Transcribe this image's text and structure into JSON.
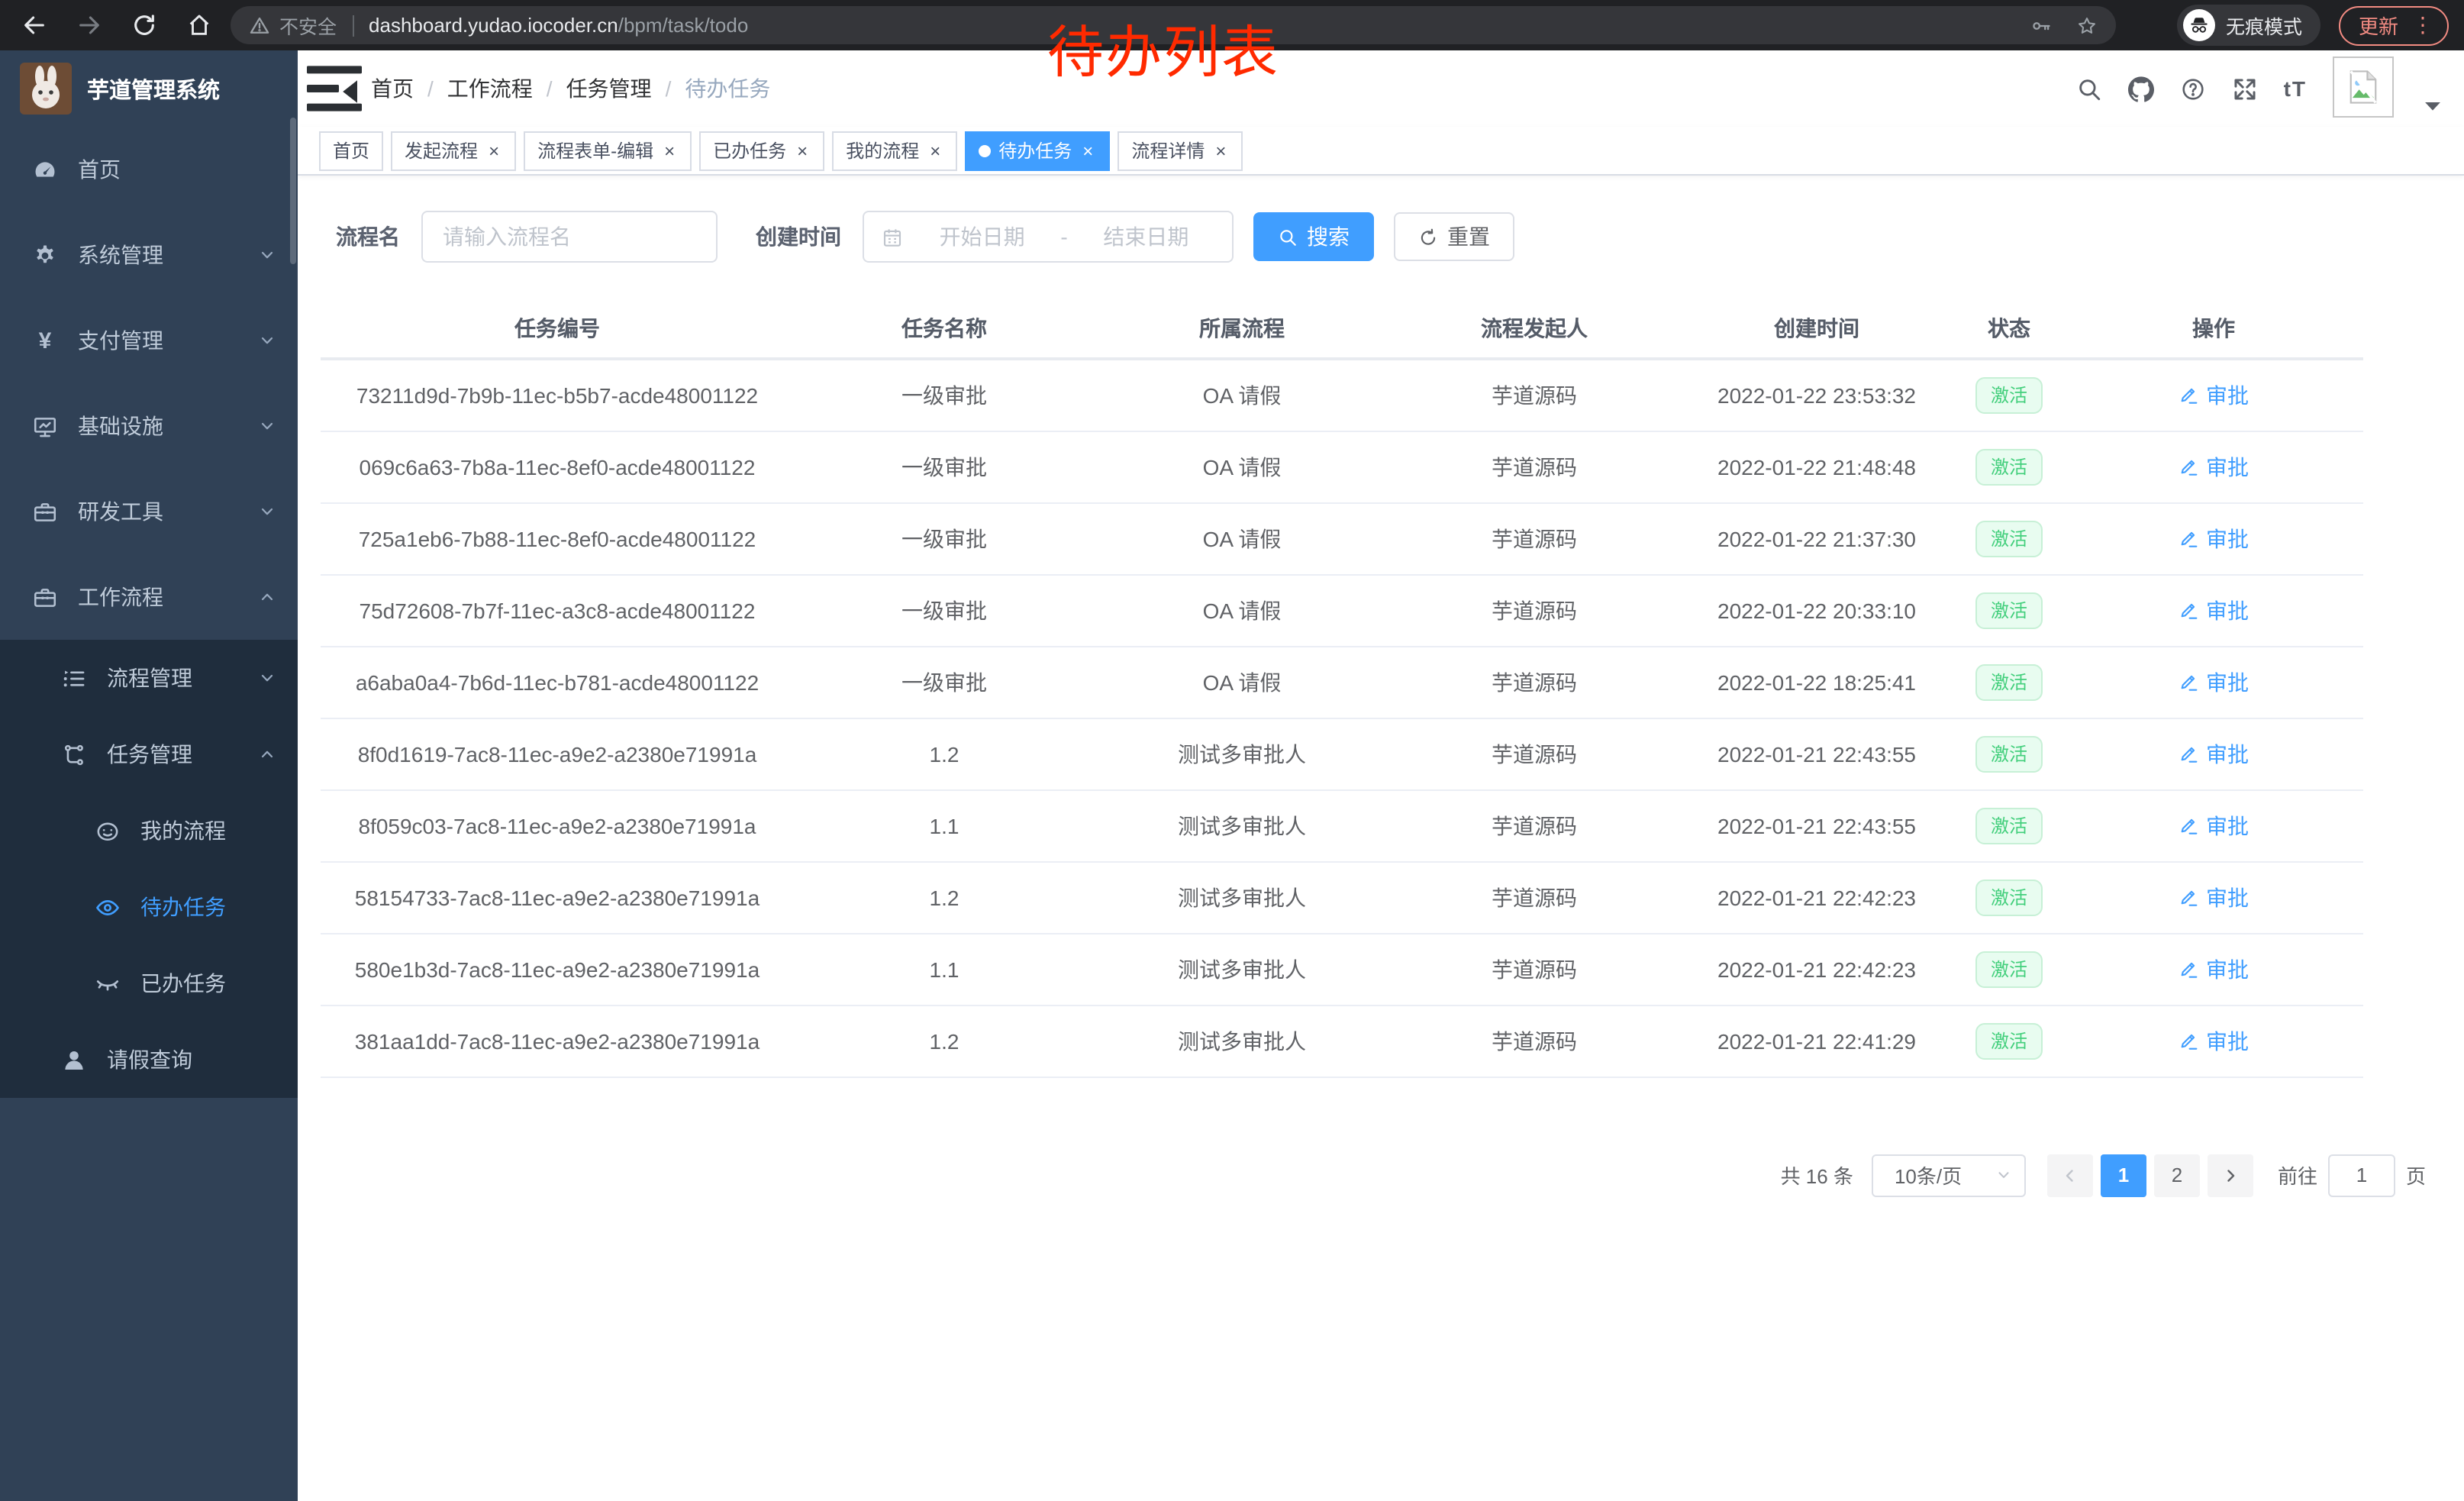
{
  "browser": {
    "security_label": "不安全",
    "url_host": "dashboard.yudao.iocoder.cn",
    "url_path": "/bpm/task/todo",
    "incognito_label": "无痕模式",
    "update_label": "更新",
    "menu_dots": "⋮"
  },
  "annotation": "待办列表",
  "colors": {
    "accent": "#409eff",
    "sidebar_bg": "#304156",
    "submenu_bg": "#1f2d3d",
    "annotation_red": "#ff2a00",
    "success_text": "#43cf7c",
    "success_bg": "#e8fcf0",
    "success_border": "#c7f0d6"
  },
  "sidebar": {
    "title": "芋道管理系统",
    "menu": [
      {
        "label": "首页",
        "icon": "gauge-icon",
        "level": 0,
        "sub": false
      },
      {
        "label": "系统管理",
        "icon": "gear-icon",
        "level": 0,
        "sub": false,
        "chevron": "down"
      },
      {
        "label": "支付管理",
        "icon": "yen-icon",
        "level": 0,
        "sub": false,
        "chevron": "down"
      },
      {
        "label": "基础设施",
        "icon": "monitor-icon",
        "level": 0,
        "sub": false,
        "chevron": "down"
      },
      {
        "label": "研发工具",
        "icon": "tool-icon",
        "level": 0,
        "sub": false,
        "chevron": "down"
      },
      {
        "label": "工作流程",
        "icon": "briefcase-icon",
        "level": 0,
        "sub": false,
        "chevron": "up"
      },
      {
        "label": "流程管理",
        "icon": "tree-icon",
        "level": 1,
        "sub": true,
        "chevron": "down"
      },
      {
        "label": "任务管理",
        "icon": "flow-icon",
        "level": 1,
        "sub": true,
        "chevron": "up"
      },
      {
        "label": "我的流程",
        "icon": "face-icon",
        "level": 2,
        "sub": true
      },
      {
        "label": "待办任务",
        "icon": "eye-icon",
        "level": 2,
        "sub": true,
        "active": true
      },
      {
        "label": "已办任务",
        "icon": "eye-closed-icon",
        "level": 2,
        "sub": true
      },
      {
        "label": "请假查询",
        "icon": "person-icon",
        "level": 1,
        "sub": true
      }
    ]
  },
  "breadcrumb": [
    "首页",
    "工作流程",
    "任务管理",
    "待办任务"
  ],
  "tabs": [
    {
      "label": "首页",
      "closable": false,
      "active": false
    },
    {
      "label": "发起流程",
      "closable": true,
      "active": false
    },
    {
      "label": "流程表单-编辑",
      "closable": true,
      "active": false
    },
    {
      "label": "已办任务",
      "closable": true,
      "active": false
    },
    {
      "label": "我的流程",
      "closable": true,
      "active": false
    },
    {
      "label": "待办任务",
      "closable": true,
      "active": true
    },
    {
      "label": "流程详情",
      "closable": true,
      "active": false
    }
  ],
  "filters": {
    "name_label": "流程名",
    "name_placeholder": "请输入流程名",
    "time_label": "创建时间",
    "start_placeholder": "开始日期",
    "range_separator": "-",
    "end_placeholder": "结束日期",
    "search_label": "搜索",
    "reset_label": "重置"
  },
  "table": {
    "columns": [
      "任务编号",
      "任务名称",
      "所属流程",
      "流程发起人",
      "创建时间",
      "状态",
      "操作"
    ],
    "status_label": "激活",
    "action_label": "审批",
    "rows": [
      {
        "id": "73211d9d-7b9b-11ec-b5b7-acde48001122",
        "name": "一级审批",
        "process": "OA 请假",
        "starter": "芋道源码",
        "time": "2022-01-22 23:53:32"
      },
      {
        "id": "069c6a63-7b8a-11ec-8ef0-acde48001122",
        "name": "一级审批",
        "process": "OA 请假",
        "starter": "芋道源码",
        "time": "2022-01-22 21:48:48"
      },
      {
        "id": "725a1eb6-7b88-11ec-8ef0-acde48001122",
        "name": "一级审批",
        "process": "OA 请假",
        "starter": "芋道源码",
        "time": "2022-01-22 21:37:30"
      },
      {
        "id": "75d72608-7b7f-11ec-a3c8-acde48001122",
        "name": "一级审批",
        "process": "OA 请假",
        "starter": "芋道源码",
        "time": "2022-01-22 20:33:10"
      },
      {
        "id": "a6aba0a4-7b6d-11ec-b781-acde48001122",
        "name": "一级审批",
        "process": "OA 请假",
        "starter": "芋道源码",
        "time": "2022-01-22 18:25:41"
      },
      {
        "id": "8f0d1619-7ac8-11ec-a9e2-a2380e71991a",
        "name": "1.2",
        "process": "测试多审批人",
        "starter": "芋道源码",
        "time": "2022-01-21 22:43:55"
      },
      {
        "id": "8f059c03-7ac8-11ec-a9e2-a2380e71991a",
        "name": "1.1",
        "process": "测试多审批人",
        "starter": "芋道源码",
        "time": "2022-01-21 22:43:55"
      },
      {
        "id": "58154733-7ac8-11ec-a9e2-a2380e71991a",
        "name": "1.2",
        "process": "测试多审批人",
        "starter": "芋道源码",
        "time": "2022-01-21 22:42:23"
      },
      {
        "id": "580e1b3d-7ac8-11ec-a9e2-a2380e71991a",
        "name": "1.1",
        "process": "测试多审批人",
        "starter": "芋道源码",
        "time": "2022-01-21 22:42:23"
      },
      {
        "id": "381aa1dd-7ac8-11ec-a9e2-a2380e71991a",
        "name": "1.2",
        "process": "测试多审批人",
        "starter": "芋道源码",
        "time": "2022-01-21 22:41:29"
      }
    ]
  },
  "pagination": {
    "total_label": "共 16 条",
    "page_size": "10条/页",
    "pages": [
      "1",
      "2"
    ],
    "active_page": "1",
    "goto_label": "前往",
    "goto_value": "1",
    "page_suffix": "页"
  },
  "icons": {
    "back-icon": "svg:back",
    "forward-icon": "svg:forward",
    "reload-icon": "svg:reload",
    "home-icon": "svg:home",
    "warning-icon": "svg:warning",
    "key-icon": "svg:key",
    "star-icon": "svg:star",
    "incognito-icon": "svg:incognito",
    "hamburger-icon": "svg:hamburger",
    "search-icon": "svg:search",
    "github-icon": "svg:github",
    "help-icon": "svg:help",
    "fullscreen-icon": "svg:fullscreen",
    "font-size-icon": "char:tT",
    "avatar-broken-icon": "svg:brokenimg",
    "caret-down-icon": "svg:caretdown",
    "gauge-icon": "svg:gauge",
    "gear-icon": "svg:gear",
    "yen-icon": "char:¥",
    "monitor-icon": "svg:monitor",
    "tool-icon": "svg:toolbox",
    "briefcase-icon": "svg:toolbox",
    "tree-icon": "svg:tree",
    "flow-icon": "svg:flow",
    "face-icon": "svg:face",
    "eye-icon": "svg:eye",
    "eye-closed-icon": "svg:eyeclosed",
    "person-icon": "svg:person",
    "calendar-icon": "svg:calendar",
    "search-btn-icon": "svg:search",
    "refresh-icon": "svg:refresh",
    "edit-icon": "svg:pencil",
    "chevron-down-icon": "svg:chevdown",
    "chevron-up-icon": "svg:chevup",
    "chevron-left-icon": "svg:chevleft",
    "chevron-right-icon": "svg:chevright",
    "select-caret-icon": "svg:chevdown",
    "app-logo": "svg:rabbit"
  }
}
